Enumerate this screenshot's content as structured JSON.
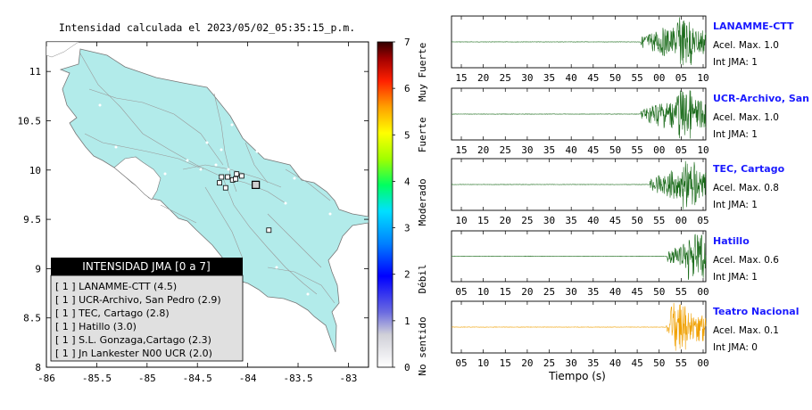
{
  "map": {
    "title": "Intensidad calculada el 2023/05/02_05:35:15_p.m.",
    "x_ticks": [
      "-86",
      "-85.5",
      "-85",
      "-84.5",
      "-84",
      "-83.5",
      "-83"
    ],
    "y_ticks": [
      "11",
      "10.5",
      "10",
      "9.5",
      "9",
      "8.5",
      "8"
    ],
    "xlim": [
      -86,
      -82.8
    ],
    "ylim": [
      8,
      11.3
    ],
    "stations": [
      {
        "lon": -84.06,
        "lat": 9.94
      },
      {
        "lon": -84.11,
        "lat": 9.96
      },
      {
        "lon": -84.2,
        "lat": 9.93
      },
      {
        "lon": -84.15,
        "lat": 9.9
      },
      {
        "lon": -84.12,
        "lat": 9.91
      },
      {
        "lon": -84.26,
        "lat": 9.93
      },
      {
        "lon": -84.28,
        "lat": 9.87
      },
      {
        "lon": -84.22,
        "lat": 9.82
      },
      {
        "lon": -83.92,
        "lat": 9.86
      },
      {
        "lon": -83.79,
        "lat": 9.39
      }
    ],
    "epicenter": {
      "lon": -83.92,
      "lat": 9.85
    },
    "legend": {
      "title": "INTENSIDAD JMA [0 a 7]",
      "items": [
        "[ 1 ]  LANAMME-CTT (4.5)",
        "[ 1 ]  UCR-Archivo, San Pedro (2.9)",
        "[ 1 ]  TEC, Cartago (2.8)",
        "[ 1 ]  Hatillo (3.0)",
        "[ 1 ]  S.L. Gonzaga,Cartago (2.3)",
        "[ 1 ]  Jn Lankester N00 UCR (2.0)"
      ]
    }
  },
  "colorbar": {
    "ticks": [
      "0",
      "1",
      "2",
      "3",
      "4",
      "5",
      "6",
      "7"
    ],
    "labels": [
      "No sentido",
      "Débil",
      "Moderado",
      "Fuerte",
      "Muy Fuerte"
    ]
  },
  "chart_data": [
    {
      "type": "line",
      "name": "LANAMME-CTT",
      "info": [
        "Acel. Max. 1.0",
        "Int JMA: 1"
      ],
      "color": "#1a6b1a",
      "x_ticks": [
        "15",
        "20",
        "25",
        "30",
        "35",
        "40",
        "45",
        "50",
        "55",
        "00",
        "05",
        "10"
      ],
      "onset": 0.745,
      "burst": 0.905
    },
    {
      "type": "line",
      "name": "UCR-Archivo, San Pedro",
      "info": [
        "Acel. Max. 1.0",
        "Int JMA: 1"
      ],
      "color": "#1a6b1a",
      "x_ticks": [
        "15",
        "20",
        "25",
        "30",
        "35",
        "40",
        "45",
        "50",
        "55",
        "00",
        "05",
        "10"
      ],
      "onset": 0.745,
      "burst": 0.905
    },
    {
      "type": "line",
      "name": "TEC, Cartago",
      "info": [
        "Acel. Max. 0.8",
        "Int JMA: 1"
      ],
      "color": "#1a6b1a",
      "x_ticks": [
        "10",
        "15",
        "20",
        "25",
        "30",
        "35",
        "40",
        "45",
        "50",
        "55",
        "00",
        "05"
      ],
      "onset": 0.78,
      "burst": 0.93
    },
    {
      "type": "line",
      "name": "Hatillo",
      "info": [
        "Acel. Max. 0.6",
        "Int JMA: 1"
      ],
      "color": "#1a6b1a",
      "x_ticks": [
        "05",
        "10",
        "15",
        "20",
        "25",
        "30",
        "35",
        "40",
        "45",
        "50",
        "55",
        "00"
      ],
      "onset": 0.845,
      "burst": 0.95
    },
    {
      "type": "line",
      "name": "Teatro Nacional",
      "info": [
        "Acel. Max. 0.1",
        "Int JMA: 0"
      ],
      "color": "#f0a000",
      "x_ticks": [
        "05",
        "10",
        "15",
        "20",
        "25",
        "30",
        "35",
        "40",
        "45",
        "50",
        "55",
        "00"
      ],
      "onset": 0.845,
      "burst": 0.88,
      "xlabel": "Tiempo (s)"
    }
  ]
}
